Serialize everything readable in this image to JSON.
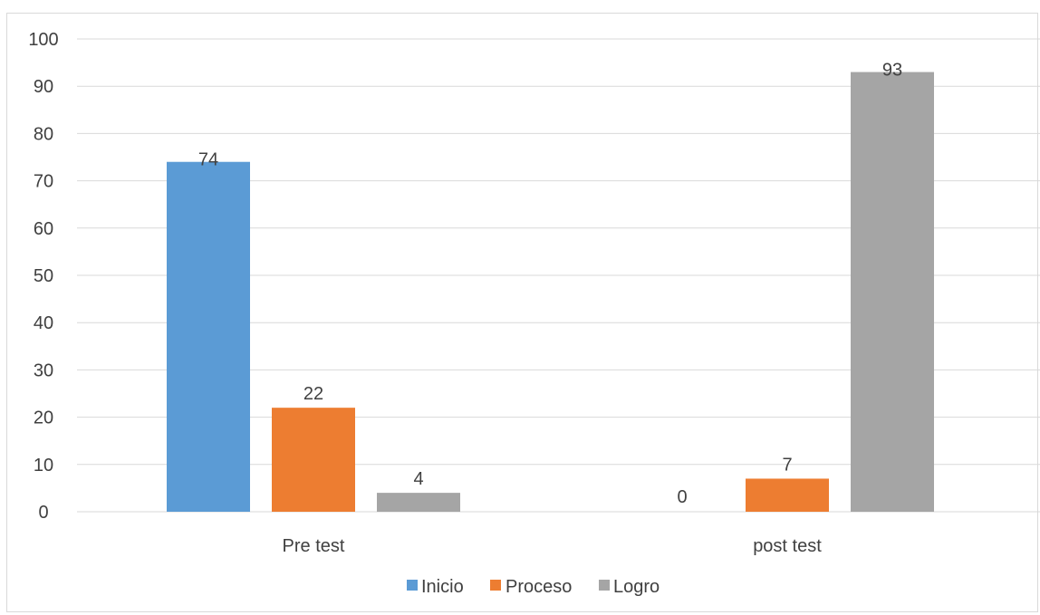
{
  "chart_data": {
    "type": "bar",
    "categories": [
      "Pre test",
      "post test"
    ],
    "series": [
      {
        "name": "Inicio",
        "color": "#5B9BD5",
        "values": [
          74,
          0
        ]
      },
      {
        "name": "Proceso",
        "color": "#ED7D31",
        "values": [
          22,
          7
        ]
      },
      {
        "name": "Logro",
        "color": "#A5A5A5",
        "values": [
          4,
          93
        ]
      }
    ],
    "title": "",
    "xlabel": "",
    "ylabel": "",
    "ylim": [
      0,
      100
    ],
    "yticks": [
      0,
      10,
      20,
      30,
      40,
      50,
      60,
      70,
      80,
      90,
      100
    ],
    "grid": true,
    "legend": "bottom",
    "data_labels": true
  }
}
